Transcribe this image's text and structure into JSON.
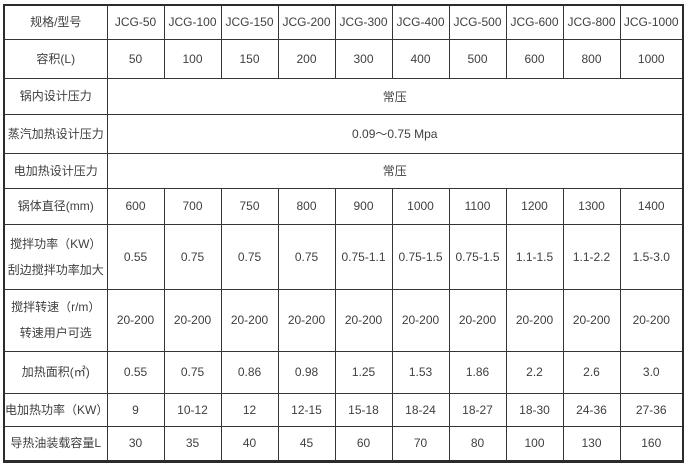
{
  "colors": {
    "background": "#ffffff",
    "cell_background": "#ffffff",
    "inner_border": "#363636",
    "outer_border": "#2b2b2b",
    "text": "#3f3f3f"
  },
  "table": {
    "header": {
      "label": "规格/型号",
      "models": [
        "JCG-50",
        "JCG-100",
        "JCG-150",
        "JCG-200",
        "JCG-300",
        "JCG-400",
        "JCG-500",
        "JCG-600",
        "JCG-800",
        "JCG-1000"
      ]
    },
    "rows": [
      {
        "label_lines": [
          "容积(L)"
        ],
        "values": [
          "50",
          "100",
          "150",
          "200",
          "300",
          "400",
          "500",
          "600",
          "800",
          "1000"
        ]
      },
      {
        "label_lines": [
          "锅内设计压力"
        ],
        "merged_value": "常压"
      },
      {
        "label_lines": [
          "蒸汽加热设计压力"
        ],
        "merged_value": "0.09～0.75 Mpa"
      },
      {
        "label_lines": [
          "电加热设计压力"
        ],
        "merged_value": "常压"
      },
      {
        "label_lines": [
          "锅体直径(mm)"
        ],
        "values": [
          "600",
          "700",
          "750",
          "800",
          "900",
          "1000",
          "1100",
          "1200",
          "1300",
          "1400"
        ]
      },
      {
        "label_lines": [
          "搅拌功率（KW）",
          "刮边搅拌功率加大"
        ],
        "values": [
          "0.55",
          "0.75",
          "0.75",
          "0.75",
          "0.75-1.1",
          "0.75-1.5",
          "0.75-1.5",
          "1.1-1.5",
          "1.1-2.2",
          "1.5-3.0"
        ]
      },
      {
        "label_lines": [
          "搅拌转速（r/m）",
          "转速用户可选"
        ],
        "values": [
          "20-200",
          "20-200",
          "20-200",
          "20-200",
          "20-200",
          "20-200",
          "20-200",
          "20-200",
          "20-200",
          "20-200"
        ]
      },
      {
        "label_lines": [
          "加热面积(㎡)"
        ],
        "values": [
          "0.55",
          "0.75",
          "0.86",
          "0.98",
          "1.25",
          "1.53",
          "1.86",
          "2.2",
          "2.6",
          "3.0"
        ]
      },
      {
        "label_lines": [
          "电加热功率（KW）"
        ],
        "values": [
          "9",
          "10-12",
          "12",
          "12-15",
          "15-18",
          "18-24",
          "18-27",
          "18-30",
          "24-36",
          "27-36"
        ]
      },
      {
        "label_lines": [
          "导热油装载容量L"
        ],
        "values": [
          "30",
          "35",
          "40",
          "45",
          "60",
          "70",
          "80",
          "100",
          "130",
          "160"
        ]
      }
    ]
  }
}
